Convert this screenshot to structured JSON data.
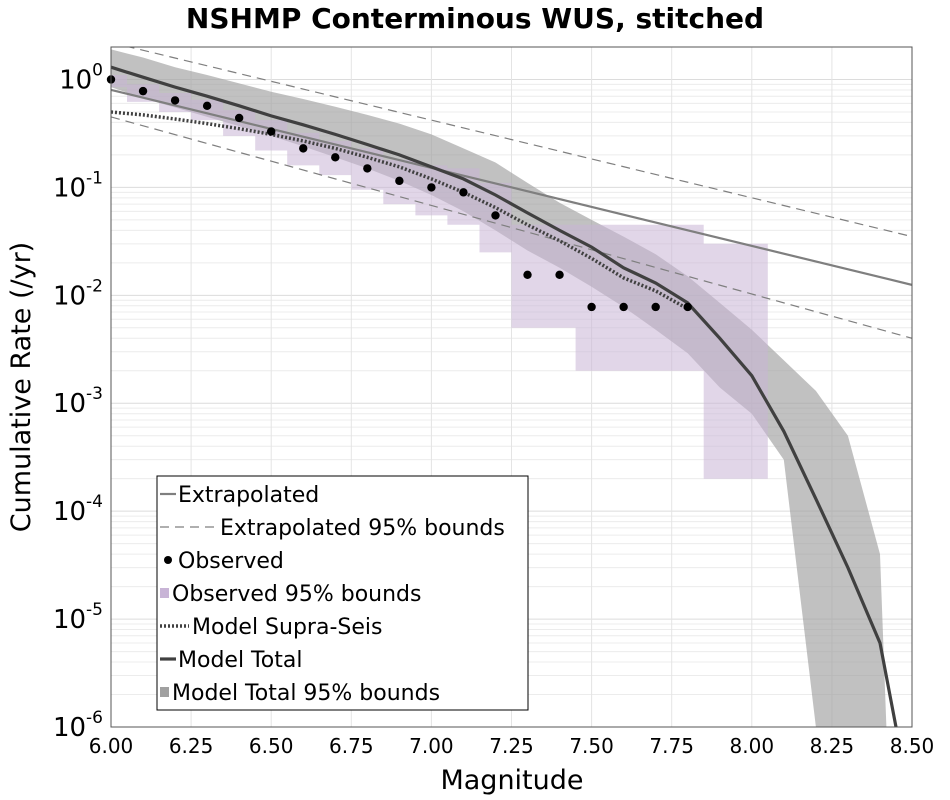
{
  "chart_data": {
    "type": "line",
    "title": "NSHMP Conterminous WUS, stitched",
    "xlabel": "Magnitude",
    "ylabel": "Cumulative Rate (/yr)",
    "xlim": [
      6.0,
      8.5
    ],
    "ylim": [
      1e-06,
      2
    ],
    "yscale": "log",
    "grid": true,
    "legend_position": "lower-left",
    "x_ticks": [
      "6.00",
      "6.25",
      "6.50",
      "6.75",
      "7.00",
      "7.25",
      "7.50",
      "7.75",
      "8.00",
      "8.25",
      "8.50"
    ],
    "y_ticks": [
      {
        "base": "10",
        "exp": "0",
        "value": 1
      },
      {
        "base": "10",
        "exp": "-1",
        "value": 0.1
      },
      {
        "base": "10",
        "exp": "-2",
        "value": 0.01
      },
      {
        "base": "10",
        "exp": "-3",
        "value": 0.001
      },
      {
        "base": "10",
        "exp": "-4",
        "value": 0.0001
      },
      {
        "base": "10",
        "exp": "-5",
        "value": 1e-05
      },
      {
        "base": "10",
        "exp": "-6",
        "value": 1e-06
      }
    ],
    "colors": {
      "extrapolated": "#7f7f7f",
      "observed": "#000000",
      "observed_bounds": "#c8b4d6",
      "model": "#404040",
      "model_bounds": "#a0a0a0"
    },
    "series": [
      {
        "name": "Extrapolated",
        "style": "solid-gray",
        "x": [
          6.0,
          8.5
        ],
        "y": [
          0.8,
          0.0125
        ]
      },
      {
        "name": "Extrapolated 95% bounds",
        "style": "dashed-gray",
        "upper": {
          "x": [
            6.0,
            8.5
          ],
          "y": [
            2.2,
            0.035
          ]
        },
        "lower": {
          "x": [
            6.0,
            8.5
          ],
          "y": [
            0.45,
            0.004
          ]
        }
      },
      {
        "name": "Observed",
        "style": "points",
        "x": [
          6.0,
          6.1,
          6.2,
          6.3,
          6.4,
          6.5,
          6.6,
          6.7,
          6.8,
          6.9,
          7.0,
          7.1,
          7.2,
          7.3,
          7.4,
          7.5,
          7.6,
          7.7,
          7.8
        ],
        "y": [
          1.0,
          0.78,
          0.64,
          0.57,
          0.44,
          0.33,
          0.23,
          0.19,
          0.15,
          0.115,
          0.1,
          0.09,
          0.055,
          0.0155,
          0.0155,
          0.0078,
          0.0078,
          0.0078,
          0.0078
        ]
      },
      {
        "name": "Observed 95% bounds",
        "style": "step-band-purple",
        "x": [
          6.0,
          6.1,
          6.2,
          6.3,
          6.4,
          6.5,
          6.6,
          6.7,
          6.8,
          6.9,
          7.0,
          7.1,
          7.2,
          7.3,
          7.4,
          7.5,
          7.6,
          7.7,
          7.8,
          7.9,
          8.0
        ],
        "upper": [
          1.1,
          0.9,
          0.75,
          0.65,
          0.52,
          0.42,
          0.32,
          0.27,
          0.23,
          0.18,
          0.16,
          0.15,
          0.11,
          0.045,
          0.045,
          0.045,
          0.045,
          0.045,
          0.045,
          0.03,
          0.03
        ],
        "lower": [
          0.85,
          0.62,
          0.5,
          0.42,
          0.3,
          0.22,
          0.16,
          0.13,
          0.095,
          0.07,
          0.055,
          0.045,
          0.025,
          0.005,
          0.005,
          0.002,
          0.002,
          0.002,
          0.002,
          0.0002,
          0.0002
        ]
      },
      {
        "name": "Model Supra-Seis",
        "style": "dotted-dark",
        "x": [
          6.0,
          6.1,
          6.2,
          6.3,
          6.4,
          6.5,
          6.6,
          6.7,
          6.8,
          6.9,
          7.0,
          7.1,
          7.2,
          7.3,
          7.4,
          7.5,
          7.6,
          7.7,
          7.8
        ],
        "y": [
          0.5,
          0.47,
          0.43,
          0.39,
          0.35,
          0.31,
          0.27,
          0.23,
          0.19,
          0.155,
          0.12,
          0.09,
          0.065,
          0.045,
          0.032,
          0.022,
          0.0145,
          0.011,
          0.0075
        ]
      },
      {
        "name": "Model Total",
        "style": "solid-dark",
        "x": [
          6.0,
          6.1,
          6.2,
          6.3,
          6.4,
          6.5,
          6.6,
          6.7,
          6.8,
          6.9,
          7.0,
          7.1,
          7.2,
          7.3,
          7.4,
          7.5,
          7.6,
          7.7,
          7.8,
          7.9,
          8.0,
          8.1,
          8.2,
          8.3,
          8.4,
          8.45
        ],
        "y": [
          1.3,
          1.05,
          0.85,
          0.7,
          0.57,
          0.46,
          0.38,
          0.31,
          0.25,
          0.2,
          0.155,
          0.12,
          0.085,
          0.058,
          0.04,
          0.028,
          0.018,
          0.013,
          0.0085,
          0.004,
          0.0018,
          0.00055,
          0.00013,
          3e-05,
          6e-06,
          1e-06
        ]
      },
      {
        "name": "Model Total 95% bounds",
        "style": "band-gray",
        "x": [
          6.0,
          6.1,
          6.2,
          6.3,
          6.4,
          6.5,
          6.6,
          6.7,
          6.8,
          6.9,
          7.0,
          7.1,
          7.2,
          7.3,
          7.4,
          7.5,
          7.6,
          7.7,
          7.8,
          7.9,
          8.0,
          8.1,
          8.2,
          8.3,
          8.4,
          8.42
        ],
        "upper": [
          1.9,
          1.6,
          1.3,
          1.1,
          0.92,
          0.77,
          0.66,
          0.56,
          0.47,
          0.39,
          0.31,
          0.23,
          0.17,
          0.11,
          0.072,
          0.05,
          0.035,
          0.024,
          0.015,
          0.0085,
          0.0048,
          0.0025,
          0.0013,
          0.0005,
          4e-05,
          1e-06
        ],
        "lower": [
          0.85,
          0.67,
          0.55,
          0.45,
          0.37,
          0.3,
          0.24,
          0.19,
          0.15,
          0.115,
          0.085,
          0.06,
          0.04,
          0.026,
          0.018,
          0.012,
          0.0078,
          0.0048,
          0.0029,
          0.0014,
          0.0008,
          0.0003,
          1e-06,
          1e-06,
          1e-06,
          1e-06
        ]
      }
    ]
  }
}
